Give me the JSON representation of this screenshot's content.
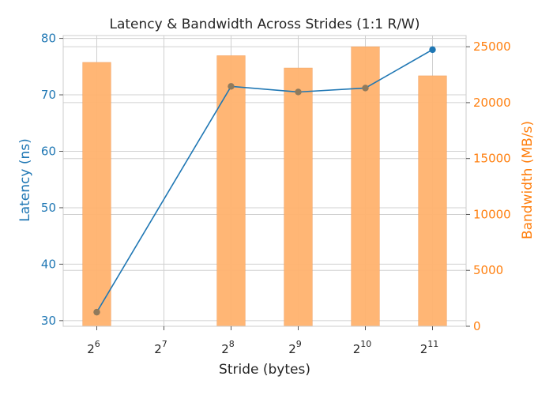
{
  "chart_data": {
    "type": "bar",
    "title": "Latency & Bandwidth Across Strides (1:1 R/W)",
    "xlabel": "Stride (bytes)",
    "x_base": "2",
    "x_exponents": [
      "6",
      "7",
      "8",
      "9",
      "10",
      "11"
    ],
    "y_left": {
      "label": "Latency (ns)",
      "ylim": [
        29,
        80.5
      ],
      "ticks": [
        30,
        40,
        50,
        60,
        70,
        80
      ],
      "color": "#1f77b4"
    },
    "y_right": {
      "label": "Bandwidth (MB/s)",
      "ylim": [
        0,
        26000
      ],
      "ticks": [
        0,
        5000,
        10000,
        15000,
        20000,
        25000
      ],
      "color": "#ff7f0e"
    },
    "series": [
      {
        "type": "bar",
        "axis": "right",
        "color": "#ffb26e",
        "values": [
          23600,
          null,
          24200,
          23100,
          25000,
          22400
        ]
      },
      {
        "type": "line",
        "axis": "left",
        "color": "#1f77b4",
        "values": [
          31.5,
          null,
          71.5,
          70.5,
          71.2,
          78.0
        ]
      }
    ],
    "grid": true
  }
}
